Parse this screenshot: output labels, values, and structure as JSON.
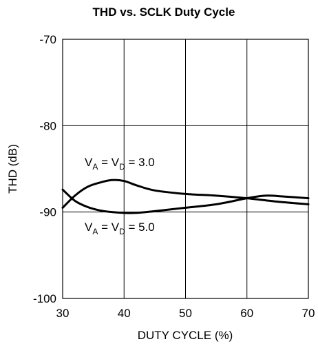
{
  "chart_data": {
    "type": "line",
    "title": "THD vs. SCLK Duty Cycle",
    "xlabel": "DUTY CYCLE (%)",
    "ylabel": "THD (dB)",
    "xlim": [
      30,
      70
    ],
    "ylim": [
      -100,
      -70
    ],
    "xticks": [
      30,
      40,
      50,
      60,
      70
    ],
    "yticks": [
      -70,
      -80,
      -90,
      -100
    ],
    "grid": true,
    "line_color": "#000000",
    "series": [
      {
        "annotation": {
          "main": "V",
          "sub1": "A",
          "eq": " = V",
          "sub2": "D",
          "rest": " = 3.0"
        },
        "x": [
          30,
          32,
          34,
          36,
          38,
          40,
          42,
          45,
          50,
          55,
          60,
          65,
          70
        ],
        "y": [
          -89.5,
          -88.1,
          -87.1,
          -86.6,
          -86.3,
          -86.4,
          -86.9,
          -87.5,
          -87.9,
          -88.1,
          -88.4,
          -88.8,
          -89.1
        ]
      },
      {
        "annotation": {
          "main": "V",
          "sub1": "A",
          "eq": " = V",
          "sub2": "D",
          "rest": " = 5.0"
        },
        "x": [
          30,
          32,
          34,
          36,
          38,
          40,
          42,
          45,
          50,
          55,
          60,
          63,
          66,
          70
        ],
        "y": [
          -87.4,
          -88.7,
          -89.4,
          -89.8,
          -90.0,
          -90.1,
          -90.1,
          -89.9,
          -89.5,
          -89.1,
          -88.4,
          -88.1,
          -88.2,
          -88.4
        ]
      }
    ]
  }
}
